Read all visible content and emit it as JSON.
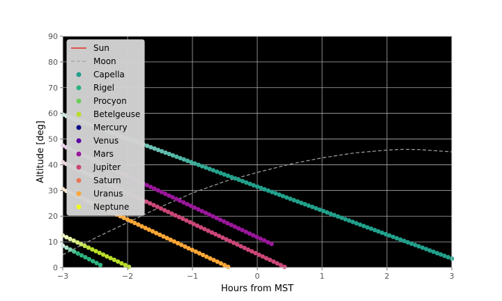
{
  "chart_data": {
    "type": "scatter",
    "title": "",
    "xlabel": "Hours from MST",
    "ylabel": "Altitude [deg]",
    "xlim": [
      -3,
      3
    ],
    "ylim": [
      0,
      90
    ],
    "xticks": [
      -3,
      -2,
      -1,
      0,
      1,
      2,
      3
    ],
    "yticks": [
      0,
      10,
      20,
      30,
      40,
      50,
      60,
      70,
      80,
      90
    ],
    "grid": true,
    "background": "#000000",
    "legend_position": "top-left",
    "series": [
      {
        "name": "Sun",
        "kind": "line",
        "color": "#e8281e",
        "points": []
      },
      {
        "name": "Moon",
        "kind": "dashed-line",
        "color": "#a6a6a6",
        "points": [
          [
            -3,
            5
          ],
          [
            -2.5,
            11.5
          ],
          [
            -2,
            17.5
          ],
          [
            -1.5,
            23.5
          ],
          [
            -1,
            29
          ],
          [
            -0.5,
            33.5
          ],
          [
            0,
            37
          ],
          [
            0.5,
            40.2
          ],
          [
            1,
            42.7
          ],
          [
            1.5,
            44.6
          ],
          [
            2,
            45.7
          ],
          [
            2.25,
            46
          ],
          [
            2.5,
            45.9
          ],
          [
            3,
            45
          ]
        ]
      },
      {
        "name": "Capella",
        "kind": "scatter",
        "color": "#21a08b",
        "fade_from": "#d4f1ec",
        "start": [
          -3,
          59.5
        ],
        "end": [
          3,
          3.5
        ],
        "n": 107
      },
      {
        "name": "Rigel",
        "kind": "scatter",
        "color": "#2db27d",
        "fade_from": "#d6f2e6",
        "start": [
          -3,
          8.5
        ],
        "end": [
          -2.42,
          1.0
        ],
        "n": 11
      },
      {
        "name": "Procyon",
        "kind": "scatter",
        "color": "#6ccd5a",
        "fade_from": "#e1f6dc",
        "start": [
          -3,
          0
        ],
        "end": [
          -3,
          0
        ],
        "n": 0
      },
      {
        "name": "Betelgeuse",
        "kind": "scatter",
        "color": "#b8de29",
        "fade_from": "#f1f9d0",
        "start": [
          -3,
          12.5
        ],
        "end": [
          -1.98,
          0.3
        ],
        "n": 19
      },
      {
        "name": "Mercury",
        "kind": "scatter",
        "color": "#0a0a87",
        "fade_from": "#cfcfe8",
        "start": [
          -3,
          0
        ],
        "end": [
          -3,
          0
        ],
        "n": 0
      },
      {
        "name": "Venus",
        "kind": "scatter",
        "color": "#5b02a3",
        "fade_from": "#ded0ee",
        "start": [
          -3,
          0
        ],
        "end": [
          -3,
          0
        ],
        "n": 0
      },
      {
        "name": "Mars",
        "kind": "scatter",
        "color": "#9a179b",
        "fade_from": "#f0d6f0",
        "start": [
          -3,
          47.5
        ],
        "end": [
          0.22,
          9.2
        ],
        "n": 58
      },
      {
        "name": "Jupiter",
        "kind": "scatter",
        "color": "#cb4678",
        "fade_from": "#f6dbe5",
        "start": [
          -3,
          41.0
        ],
        "end": [
          0.42,
          0.3
        ],
        "n": 62
      },
      {
        "name": "Saturn",
        "kind": "scatter",
        "color": "#eb7655",
        "fade_from": "#fbe2d9",
        "start": [
          -3,
          0
        ],
        "end": [
          -3,
          0
        ],
        "n": 0
      },
      {
        "name": "Uranus",
        "kind": "scatter",
        "color": "#fca636",
        "fade_from": "#fdeed7",
        "start": [
          -3,
          30.5
        ],
        "end": [
          -0.45,
          0.3
        ],
        "n": 47
      },
      {
        "name": "Neptune",
        "kind": "scatter",
        "color": "#f0f921",
        "fade_from": "#fcfed6",
        "start": [
          -3,
          0
        ],
        "end": [
          -3,
          0
        ],
        "n": 0
      }
    ]
  }
}
